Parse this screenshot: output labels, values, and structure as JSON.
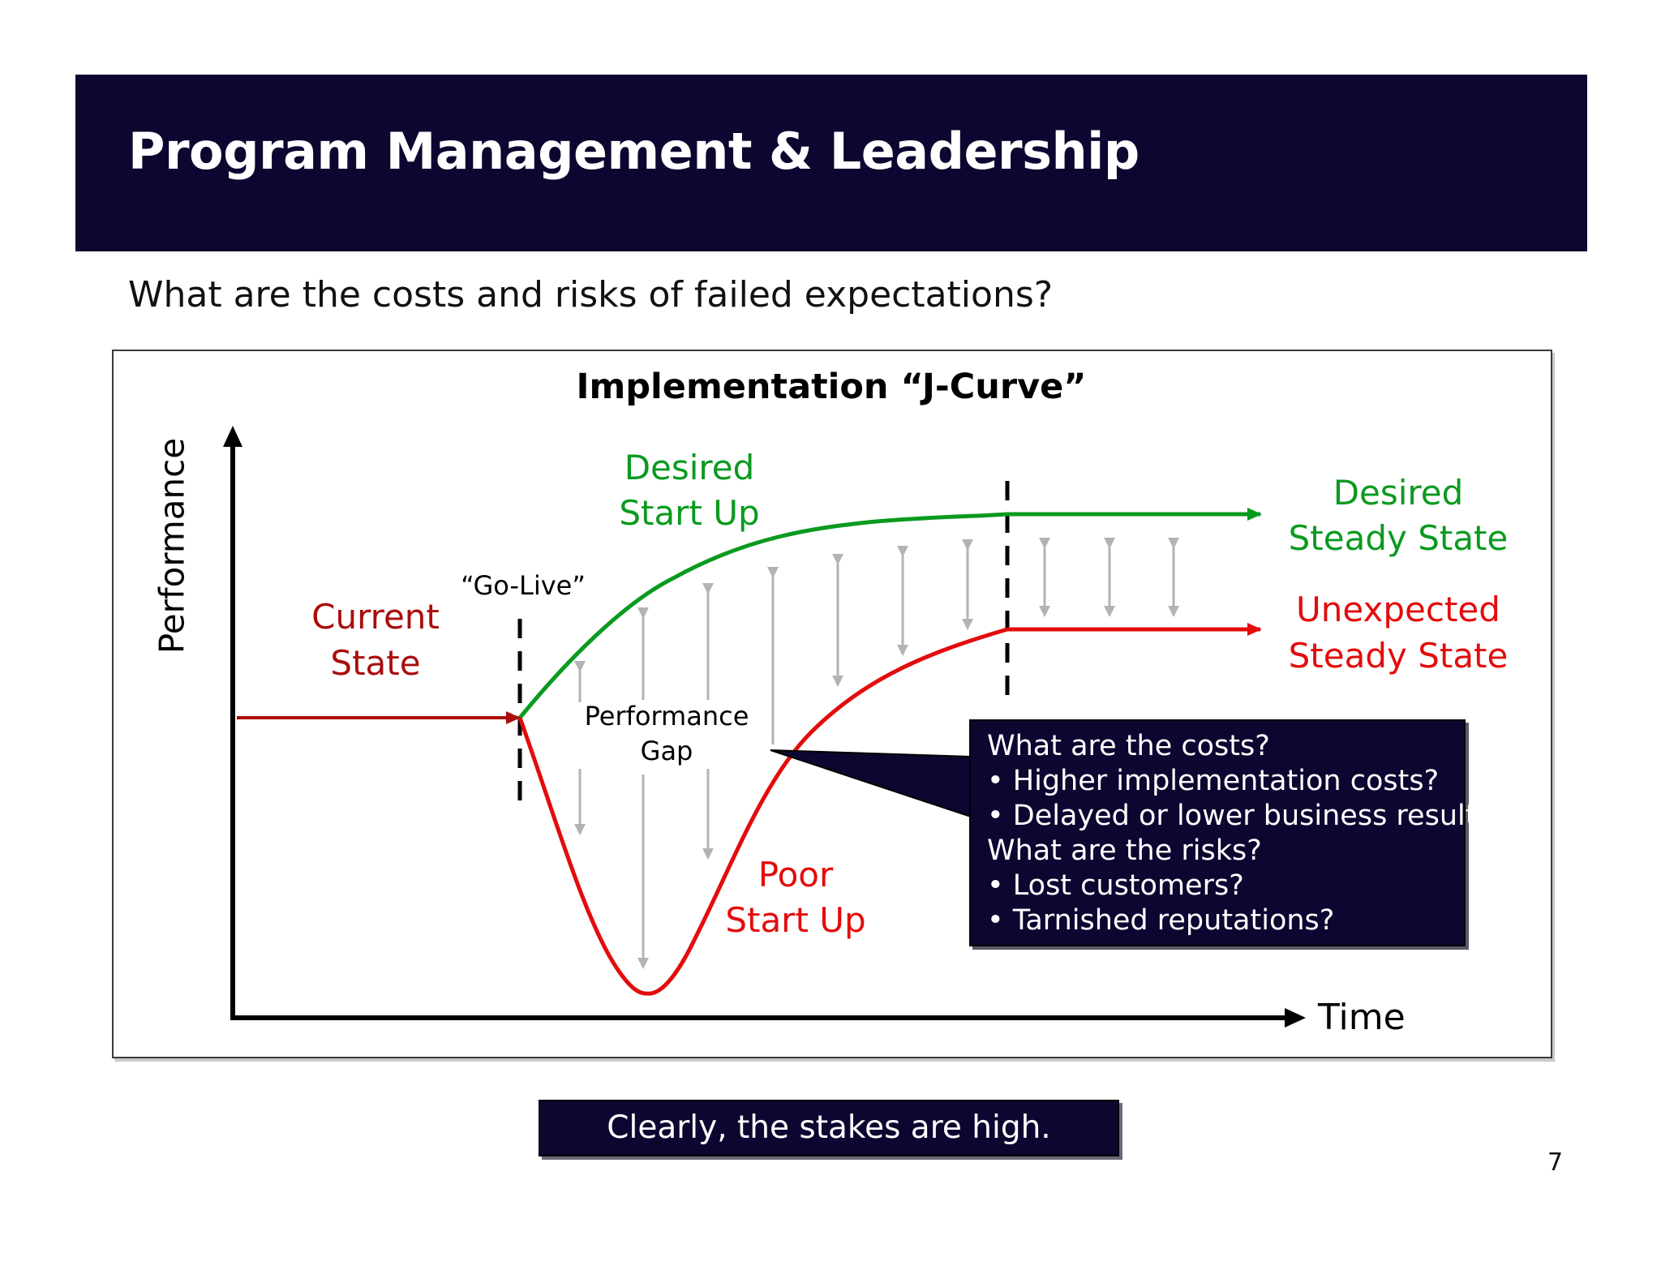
{
  "header": {
    "title": "Program Management & Leadership"
  },
  "subtitle": "What are the costs and risks of failed expectations?",
  "diagram": {
    "title": "Implementation “J-Curve”",
    "y_axis_label": "Performance",
    "x_axis_label": "Time",
    "go_live_label": "“Go-Live”",
    "current_state": [
      "Current",
      "State"
    ],
    "desired_start_up": [
      "Desired",
      "Start Up"
    ],
    "desired_steady_state": [
      "Desired",
      "Steady State"
    ],
    "unexpected_steady_state": [
      "Unexpected",
      "Steady State"
    ],
    "performance_gap": [
      "Performance",
      "Gap"
    ],
    "poor_start_up": [
      "Poor",
      "Start Up"
    ],
    "colors": {
      "desired": "#0a9a1f",
      "poor": "#e30c0c",
      "current": "#aa0d0d",
      "gap_arrows": "#b3b3b3"
    }
  },
  "callout": {
    "lines": [
      "What are the costs?",
      "• Higher implementation costs?",
      "• Delayed or lower business results?",
      "What are the risks?",
      "• Lost customers?",
      "• Tarnished reputations?"
    ]
  },
  "footer": {
    "banner": "Clearly, the stakes are high."
  },
  "page_number": "7",
  "theme": {
    "navy": "#0c0730"
  }
}
